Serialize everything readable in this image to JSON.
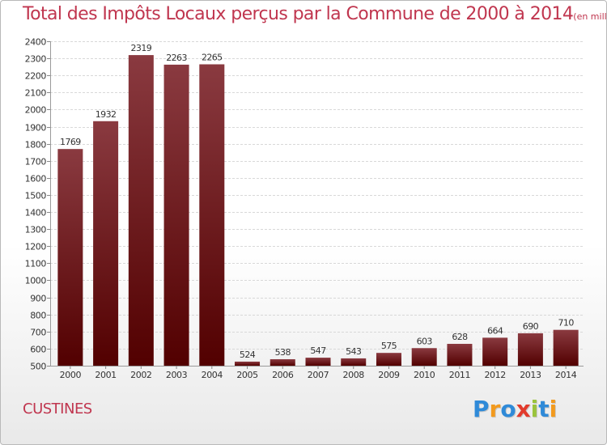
{
  "title": "Total des Impôts Locaux perçus par la Commune de 2000 à 2014",
  "title_unit": "(en milliers d'€)",
  "commune": "CUSTINES",
  "logo": {
    "letters": [
      "P",
      "r",
      "o",
      "x",
      "i",
      "t",
      "i"
    ],
    "colors": [
      "#2f8ad8",
      "#f29a1e",
      "#2f8ad8",
      "#e23b2c",
      "#9ac33c",
      "#2f8ad8",
      "#f29a1e"
    ]
  },
  "colors": {
    "bar_top": "#8a3a40",
    "bar_bottom": "#520000",
    "title": "#c0364f"
  },
  "chart_data": {
    "type": "bar",
    "categories": [
      "2000",
      "2001",
      "2002",
      "2003",
      "2004",
      "2005",
      "2006",
      "2007",
      "2008",
      "2009",
      "2010",
      "2011",
      "2012",
      "2013",
      "2014"
    ],
    "values": [
      1769,
      1932,
      2319,
      2263,
      2265,
      524,
      538,
      547,
      543,
      575,
      603,
      628,
      664,
      690,
      710
    ],
    "data_labels": [
      "1769",
      "1932",
      "2319",
      "2263",
      "2265",
      "524",
      "538",
      "547",
      "543",
      "575",
      "603",
      "628",
      "664",
      "690",
      "710"
    ],
    "ylim": [
      500,
      2400
    ],
    "yticks": [
      "500",
      "600",
      "700",
      "800",
      "900",
      "1000",
      "1100",
      "1200",
      "1300",
      "1400",
      "1500",
      "1600",
      "1700",
      "1800",
      "1900",
      "2000",
      "2100",
      "2200",
      "2300",
      "2400"
    ],
    "grid": true
  }
}
